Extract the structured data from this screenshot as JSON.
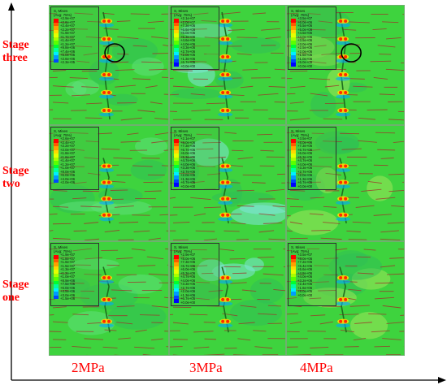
{
  "rows": [
    {
      "label": "Stage three"
    },
    {
      "label": "Stage two"
    },
    {
      "label": "Stage one"
    }
  ],
  "columns": [
    {
      "label": "2MPa"
    },
    {
      "label": "3MPa"
    },
    {
      "label": "4MPa"
    }
  ],
  "legend": {
    "title": "S, Mises",
    "subtitle": "(Avg: 75%)",
    "colors": [
      "#ff0000",
      "#ff5a00",
      "#ffa000",
      "#ffd800",
      "#e6ff00",
      "#a8ff00",
      "#5aff00",
      "#00ff30",
      "#00ff9c",
      "#00f0ff",
      "#009cff",
      "#0048ff",
      "#0000ff"
    ]
  },
  "panels": [
    {
      "values": [
        "+2.9e+07",
        "+2.6e+07",
        "+2.4e+07",
        "+2.2e+07",
        "+1.9e+07",
        "+1.7e+07",
        "+1.4e+07",
        "+1.2e+07",
        "+9.8e+06",
        "+7.4e+06",
        "+5.0e+06",
        "+2.6e+06",
        "+2.3e+05"
      ]
    },
    {
      "values": [
        "+2.1e+07",
        "+2.0e+07",
        "+7.3e+06",
        "+6.6e+06",
        "+6.0e+06",
        "+5.3e+06",
        "+4.6e+06",
        "+4.0e+06",
        "+3.3e+06",
        "+2.7e+06",
        "+2.0e+06",
        "+1.3e+06",
        "+6.7e+05",
        "+0.0e+00"
      ]
    },
    {
      "values": [
        "+3.5e+07",
        "+6.0e+06",
        "+5.5e+06",
        "+5.0e+06",
        "+4.5e+06",
        "+4.0e+06",
        "+3.5e+06",
        "+3.0e+06",
        "+2.5e+06",
        "+2.0e+06",
        "+1.5e+06",
        "+1.0e+06",
        "+5.0e+05",
        "+0.0e+00"
      ]
    },
    {
      "values": [
        "+2.6e+07",
        "+2.4e+07",
        "+2.2e+07",
        "+2.0e+07",
        "+1.8e+07",
        "+1.6e+07",
        "+1.4e+07",
        "+1.2e+07",
        "+1.0e+07",
        "+8.0e+06",
        "+6.0e+06",
        "+4.0e+06",
        "+2.0e+06"
      ]
    },
    {
      "values": [
        "+2.1e+07",
        "+8.0e+06",
        "+7.3e+06",
        "+6.7e+06",
        "+6.0e+06",
        "+5.3e+06",
        "+4.7e+06",
        "+4.0e+06",
        "+3.3e+06",
        "+2.7e+06",
        "+2.0e+06",
        "+1.3e+06",
        "+6.7e+05",
        "+0.0e+00"
      ]
    },
    {
      "values": [
        "+3.5e+07",
        "+8.0e+06",
        "+7.3e+06",
        "+6.7e+06",
        "+6.0e+06",
        "+5.3e+06",
        "+4.7e+06",
        "+4.0e+06",
        "+3.3e+06",
        "+2.7e+06",
        "+2.0e+06",
        "+1.3e+06",
        "+6.7e+05",
        "+0.0e+00"
      ]
    },
    {
      "values": [
        "+1.9e+07",
        "+1.8e+07",
        "+1.6e+07",
        "+1.5e+07",
        "+1.3e+07",
        "+1.2e+07",
        "+1.0e+07",
        "+8.9e+06",
        "+7.5e+06",
        "+6.0e+06",
        "+4.5e+06",
        "+3.0e+06",
        "+1.5e+06"
      ]
    },
    {
      "values": [
        "+2.9e+07",
        "+8.0e+06",
        "+7.3e+06",
        "+6.7e+06",
        "+6.0e+06",
        "+5.3e+06",
        "+4.7e+06",
        "+4.0e+06",
        "+3.3e+06",
        "+2.7e+06",
        "+2.0e+06",
        "+1.3e+06",
        "+6.7e+05",
        "+0.0e+00"
      ]
    },
    {
      "values": [
        "+3.5e+07",
        "+8.0e+06",
        "+7.2e+06",
        "+6.4e+06",
        "+5.6e+06",
        "+4.8e+06",
        "+4.0e+06",
        "+3.2e+06",
        "+2.4e+06",
        "+1.6e+06",
        "+8.0e+05",
        "+0.0e+00"
      ]
    }
  ]
}
